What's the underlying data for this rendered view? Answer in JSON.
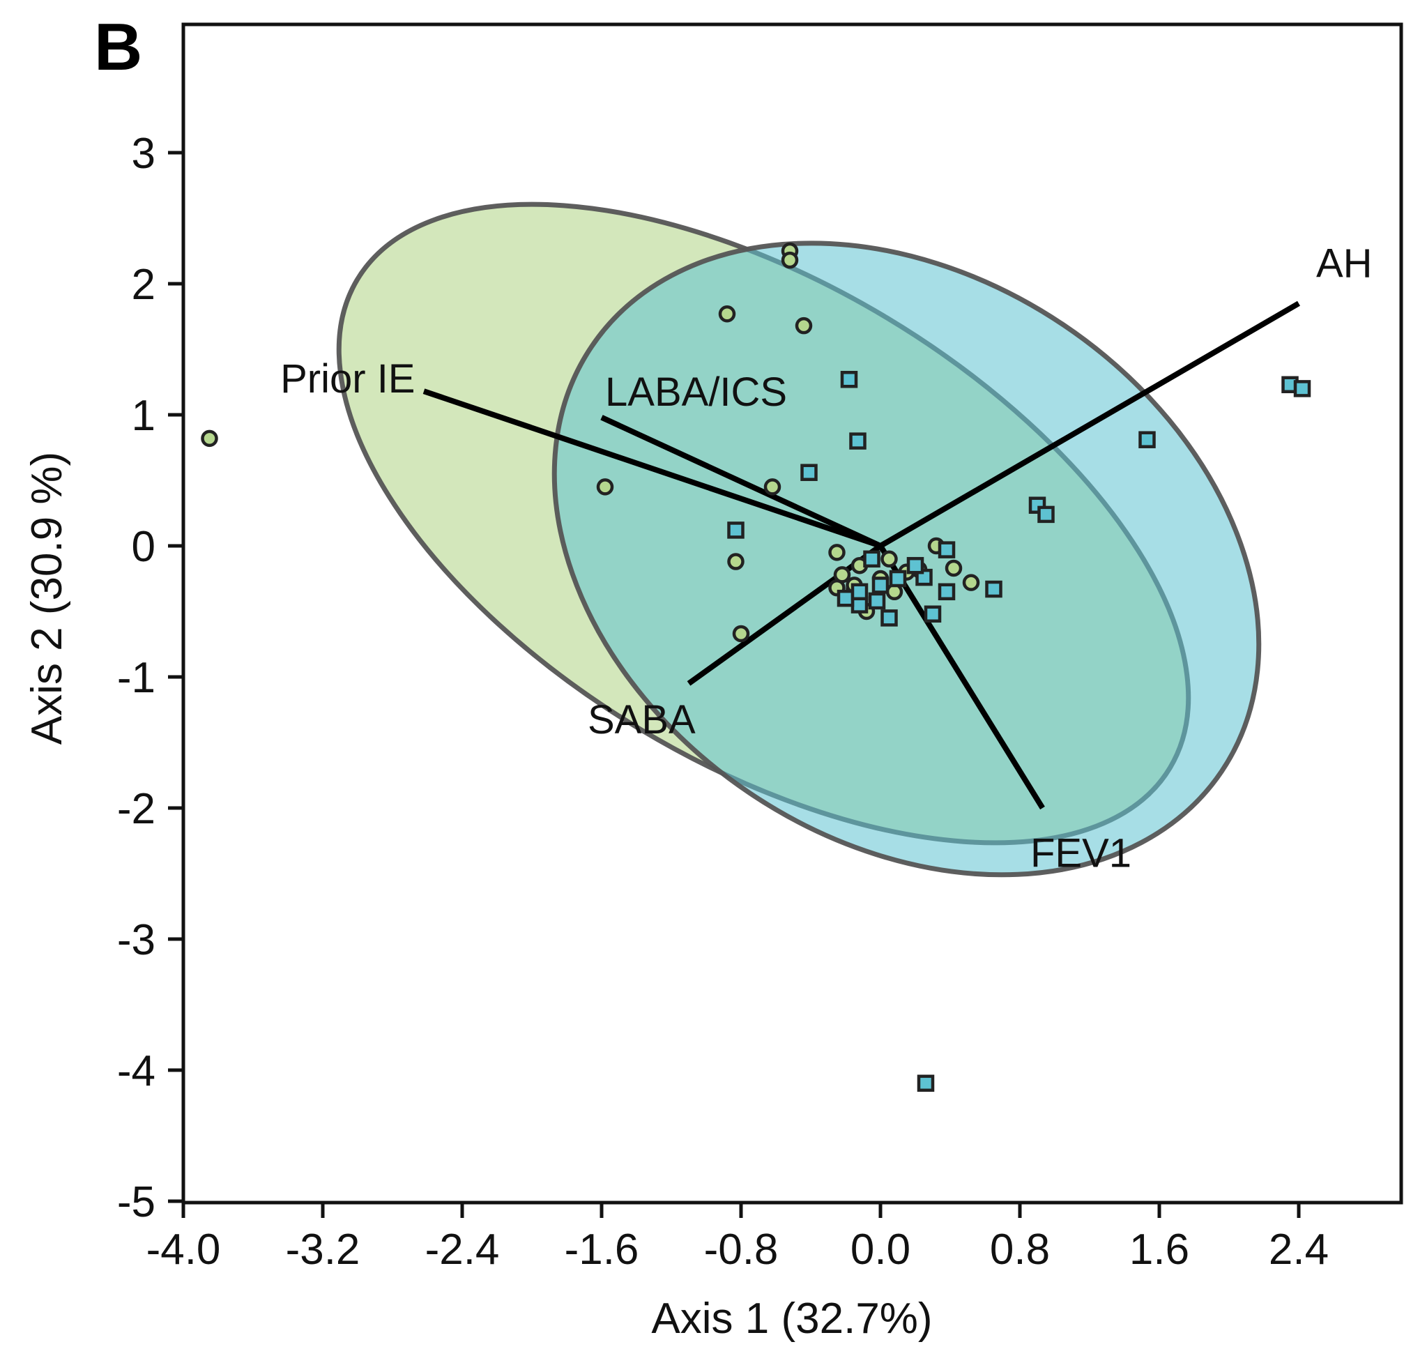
{
  "chart_data": {
    "type": "scatter",
    "panel_label": "B",
    "xlabel": "Axis 1 (32.7%)",
    "ylabel": "Axis 2 (30.9 %)",
    "xlim": [
      -4.0,
      3.0
    ],
    "ylim": [
      -5,
      4
    ],
    "xticks": [
      "-4.0",
      "-3.2",
      "-2.4",
      "-1.6",
      "-0.8",
      "0.0",
      "0.8",
      "1.6",
      "2.4"
    ],
    "yticks": [
      "3",
      "2",
      "1",
      "0",
      "-1",
      "-2",
      "-3",
      "-4",
      "-5"
    ],
    "grid": false,
    "colors": {
      "green_fill": "#b5d78e",
      "blue_fill": "#5ec2d2",
      "outline": "#555555",
      "vector": "#000000"
    },
    "ellipses": [
      {
        "group": "green",
        "cx": -0.67,
        "cy": 0.17,
        "rx": 2.72,
        "ry": 1.83,
        "angle_deg": 31,
        "fill": "#b5d78e",
        "opacity": 0.6
      },
      {
        "group": "blue",
        "cx": 0.15,
        "cy": -0.1,
        "rx": 2.18,
        "ry": 2.15,
        "angle_deg": 34,
        "fill": "#5ec2d2",
        "opacity": 0.55
      }
    ],
    "vectors": [
      {
        "label": "AH",
        "x": 2.4,
        "y": 1.85
      },
      {
        "label": "Prior IE",
        "x": -2.62,
        "y": 1.18
      },
      {
        "label": "LABA/ICS",
        "x": -1.6,
        "y": 0.98
      },
      {
        "label": "SABA",
        "x": -1.1,
        "y": -1.05
      },
      {
        "label": "FEV1",
        "x": 0.93,
        "y": -2.0
      }
    ],
    "series": [
      {
        "group": "green",
        "marker": "circle",
        "x": [
          -3.85,
          -0.52,
          -0.52,
          -0.88,
          -0.44,
          -1.58,
          -0.62,
          -0.83,
          -0.8,
          -0.25,
          -0.12,
          0.05,
          0.15,
          0.22,
          0.32,
          0.42,
          0.52,
          -0.22,
          -0.15,
          -0.25,
          -0.15,
          0.0,
          -0.08,
          0.08
        ],
        "y": [
          0.82,
          2.25,
          2.18,
          1.77,
          1.68,
          0.45,
          0.45,
          -0.12,
          -0.67,
          -0.05,
          -0.15,
          -0.1,
          -0.2,
          -0.18,
          0.0,
          -0.17,
          -0.28,
          -0.22,
          -0.33,
          -0.32,
          -0.3,
          -0.25,
          -0.5,
          -0.35
        ]
      },
      {
        "group": "blue",
        "marker": "square",
        "x": [
          -0.18,
          -0.13,
          -0.41,
          1.53,
          0.9,
          0.95,
          2.35,
          2.42,
          -0.83,
          0.38,
          0.65,
          0.38,
          0.3,
          0.25,
          0.2,
          -0.05,
          0.05,
          -0.12,
          -0.2,
          -0.12,
          0.0,
          0.1,
          -0.02,
          0.26
        ],
        "y": [
          1.27,
          0.8,
          0.56,
          0.81,
          0.31,
          0.24,
          1.23,
          1.2,
          0.12,
          -0.03,
          -0.33,
          -0.35,
          -0.52,
          -0.24,
          -0.15,
          -0.1,
          -0.55,
          -0.45,
          -0.4,
          -0.35,
          -0.3,
          -0.25,
          -0.42,
          -4.1
        ]
      }
    ]
  }
}
